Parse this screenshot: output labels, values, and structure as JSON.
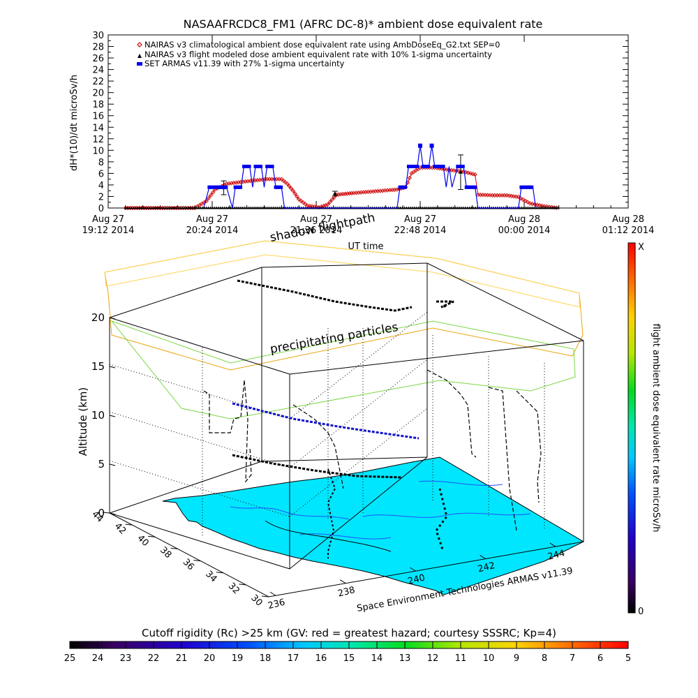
{
  "chart_data": [
    {
      "type": "line",
      "title": "NASAAFRCDC8_FM1 (AFRC DC-8)* ambient dose equivalent rate",
      "ylabel": "dH*(10)/dt microSv/h",
      "xlabel": "UT time",
      "ylim": [
        0,
        30
      ],
      "yticks": [
        0,
        2,
        4,
        6,
        8,
        10,
        12,
        14,
        16,
        18,
        20,
        22,
        24,
        26,
        28,
        30
      ],
      "xlim": [
        0,
        360
      ],
      "xticks": [
        {
          "x": 0,
          "line1": "Aug 27",
          "line2": "19:12 2014"
        },
        {
          "x": 72,
          "line1": "Aug 27",
          "line2": "20:24 2014"
        },
        {
          "x": 144,
          "line1": "Aug 27",
          "line2": "21:36 2014"
        },
        {
          "x": 216,
          "line1": "Aug 27",
          "line2": "22:48 2014"
        },
        {
          "x": 288,
          "line1": "Aug 28",
          "line2": "00:00 2014"
        },
        {
          "x": 360,
          "line1": "Aug 28",
          "line2": "01:12 2014"
        }
      ],
      "legend": {
        "position": "top-left",
        "entries": [
          "NAIRAS v3 climatological ambient dose equivalent rate using AmbDoseEq_G2.txt SEP=0",
          "NAIRAS v3 flight modeled dose ambient equivalent rate with 10% 1-sigma uncertainty",
          "SET ARMAS v11.39 with 27% 1-sigma uncertainty"
        ]
      },
      "series": [
        {
          "name": "NAIRAS v3 climatological ambient dose equivalent rate using AmbDoseEq_G2.txt SEP=0",
          "color": "#cc0000",
          "marker": "diamond",
          "points": [
            [
              12,
              0
            ],
            [
              60,
              0
            ],
            [
              68,
              1.2
            ],
            [
              74,
              3.2
            ],
            [
              82,
              4.2
            ],
            [
              95,
              4.6
            ],
            [
              110,
              5.0
            ],
            [
              120,
              5.0
            ],
            [
              124,
              4.2
            ],
            [
              128,
              3.0
            ],
            [
              132,
              1.5
            ],
            [
              138,
              0.4
            ],
            [
              146,
              0.1
            ],
            [
              152,
              0.6
            ],
            [
              158,
              2.3
            ],
            [
              170,
              2.6
            ],
            [
              185,
              2.9
            ],
            [
              200,
              3.2
            ],
            [
              206,
              3.6
            ],
            [
              210,
              6.0
            ],
            [
              216,
              7.0
            ],
            [
              226,
              7.0
            ],
            [
              236,
              6.6
            ],
            [
              246,
              6.3
            ],
            [
              254,
              5.8
            ],
            [
              256,
              2.3
            ],
            [
              266,
              2.2
            ],
            [
              276,
              2.2
            ],
            [
              284,
              1.9
            ],
            [
              292,
              0.8
            ],
            [
              302,
              0.3
            ],
            [
              312,
              0
            ]
          ]
        },
        {
          "name": "NAIRAS v3 flight modeled dose ambient equivalent rate with 10% 1-sigma uncertainty",
          "color": "#000000",
          "marker": "triangle",
          "points": [
            [
              12,
              0
            ],
            [
              60,
              0
            ],
            [
              312,
              0
            ]
          ],
          "errorbars": [
            [
              80,
              3.5,
              1.2
            ],
            [
              157,
              2.5,
              0.4
            ],
            [
              244,
              6.2,
              3.0
            ]
          ]
        },
        {
          "name": "SET ARMAS v11.39 with 27% 1-sigma uncertainty",
          "color": "#0000ee",
          "marker": "square",
          "points": [
            [
              66,
              0
            ],
            [
              70,
              3.6
            ],
            [
              78,
              3.6
            ],
            [
              82,
              3.6
            ],
            [
              86,
              0
            ],
            [
              88,
              3.6
            ],
            [
              92,
              3.6
            ],
            [
              94,
              7.2
            ],
            [
              98,
              7.2
            ],
            [
              100,
              3.6
            ],
            [
              102,
              7.2
            ],
            [
              106,
              7.2
            ],
            [
              108,
              3.6
            ],
            [
              110,
              7.2
            ],
            [
              114,
              7.2
            ],
            [
              116,
              3.6
            ],
            [
              120,
              3.6
            ],
            [
              122,
              0
            ],
            [
              200,
              0
            ],
            [
              202,
              3.6
            ],
            [
              206,
              3.6
            ],
            [
              208,
              7.2
            ],
            [
              214,
              7.2
            ],
            [
              216,
              10.8
            ],
            [
              218,
              7.2
            ],
            [
              222,
              7.2
            ],
            [
              224,
              10.8
            ],
            [
              226,
              7.2
            ],
            [
              232,
              7.2
            ],
            [
              234,
              3.6
            ],
            [
              236,
              7.2
            ],
            [
              238,
              3.6
            ],
            [
              242,
              7.2
            ],
            [
              246,
              7.2
            ],
            [
              248,
              3.6
            ],
            [
              254,
              3.6
            ],
            [
              256,
              0
            ],
            [
              284,
              0
            ],
            [
              286,
              3.6
            ],
            [
              294,
              3.6
            ],
            [
              296,
              0
            ]
          ]
        }
      ]
    },
    {
      "type": "scatter",
      "title": "shadow flightpath",
      "ylabel": "Altitude (km)",
      "xlabel": "Space Environment Technologies ARMAS v11.39",
      "zticks": [
        0,
        5,
        10,
        15,
        20
      ],
      "lat_ticks": [
        44,
        42,
        40,
        38,
        36,
        34,
        32,
        30
      ],
      "lon_ticks": [
        236,
        238,
        240,
        242,
        244
      ],
      "annotations": [
        "precipitating particles",
        "shadow flightpath"
      ],
      "colorbar_right": {
        "label": "flight ambient dose equivalent rate microSv/h",
        "top": "X",
        "bottom": "0"
      }
    },
    {
      "type": "heatmap",
      "title": "Cutoff rigidity (Rc) >25 km (GV: red = greatest hazard; courtesy SSSRC; Kp=4)",
      "ticks": [
        25,
        24,
        23,
        22,
        21,
        20,
        19,
        18,
        17,
        16,
        15,
        14,
        13,
        12,
        11,
        10,
        9,
        8,
        7,
        6,
        5
      ]
    }
  ]
}
